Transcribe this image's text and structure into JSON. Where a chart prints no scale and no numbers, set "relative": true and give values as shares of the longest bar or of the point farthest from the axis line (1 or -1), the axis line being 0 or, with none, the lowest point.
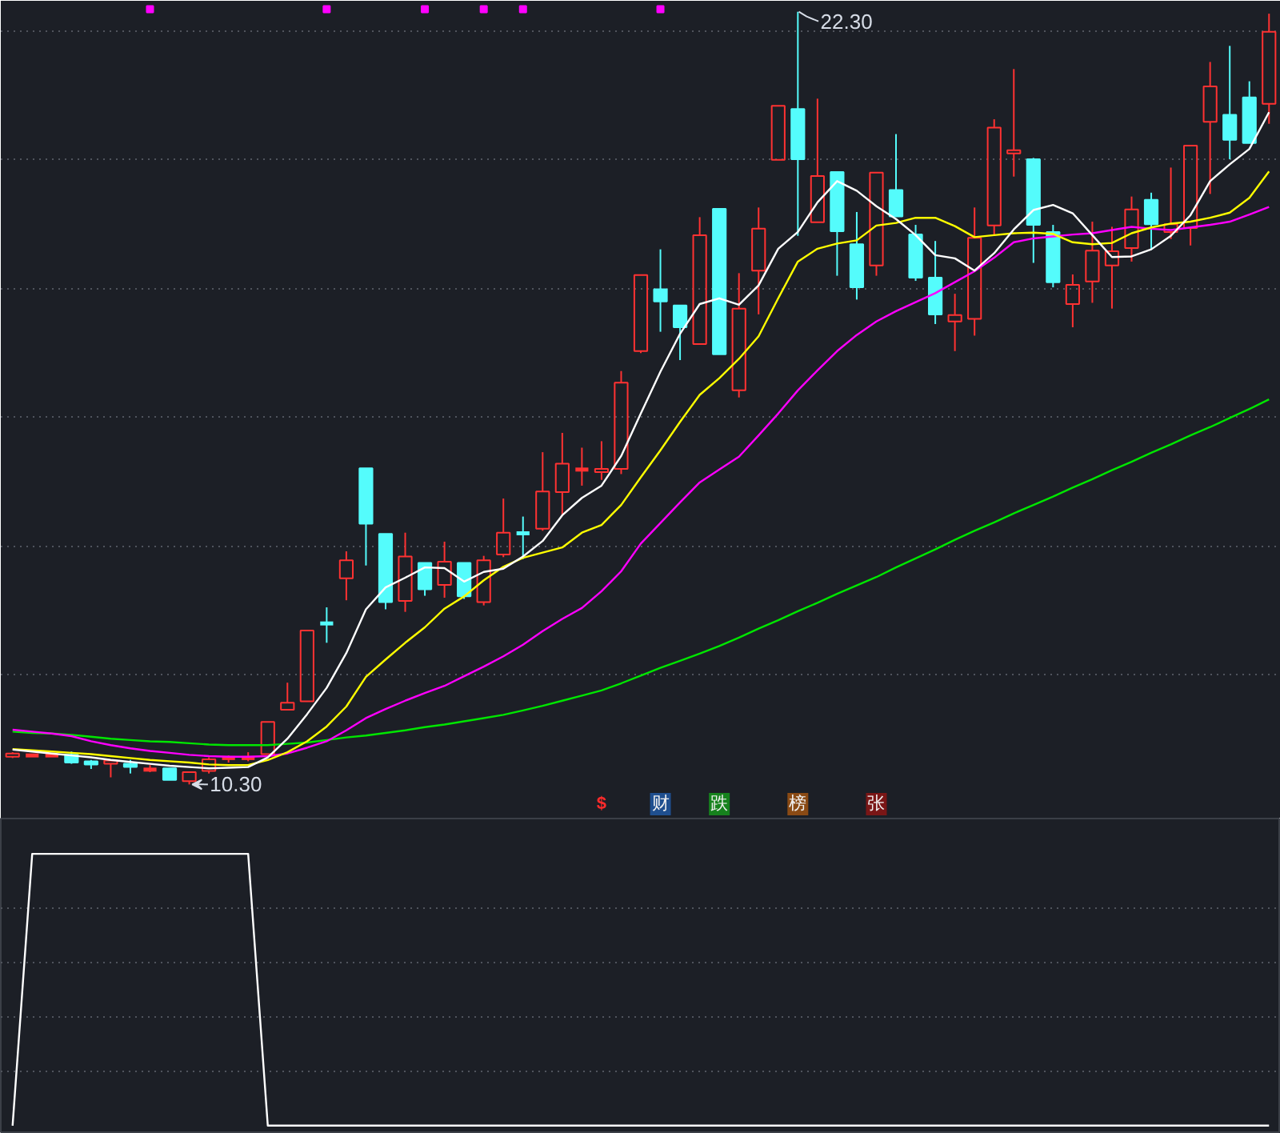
{
  "chart_data": [
    {
      "type": "candlestick",
      "categories": [
        null,
        null,
        null,
        null,
        null,
        null,
        null,
        null,
        null,
        null,
        null,
        null,
        null,
        null,
        null,
        null,
        null,
        null,
        null,
        null,
        null,
        null,
        null,
        null,
        null,
        null,
        null,
        null,
        null,
        null,
        null,
        null,
        null,
        null,
        null,
        null,
        null,
        null,
        null,
        null,
        null,
        null,
        null,
        null,
        null,
        null,
        null,
        null,
        null,
        null,
        null,
        null,
        null,
        null,
        null,
        null,
        null,
        null,
        null,
        null,
        null,
        null,
        null,
        null,
        null
      ],
      "ohlc": [
        [
          10.73,
          10.8,
          10.71,
          10.78
        ],
        [
          10.75,
          10.77,
          10.73,
          10.75
        ],
        [
          10.75,
          10.75,
          10.75,
          10.75
        ],
        [
          10.76,
          10.81,
          10.62,
          10.64
        ],
        [
          10.66,
          10.68,
          10.54,
          10.61
        ],
        [
          10.62,
          10.68,
          10.41,
          10.67
        ],
        [
          10.62,
          10.68,
          10.47,
          10.57
        ],
        [
          10.53,
          10.6,
          10.49,
          10.53
        ],
        [
          10.55,
          10.55,
          10.37,
          10.37
        ],
        [
          10.35,
          10.49,
          10.3,
          10.49
        ],
        [
          10.51,
          10.72,
          10.47,
          10.69
        ],
        [
          10.71,
          10.75,
          10.64,
          10.71
        ],
        [
          10.71,
          10.8,
          10.66,
          10.71
        ],
        [
          10.77,
          11.27,
          10.77,
          11.27
        ],
        [
          11.46,
          11.88,
          11.46,
          11.57
        ],
        [
          11.59,
          12.69,
          11.59,
          12.69
        ],
        [
          12.8,
          13.05,
          12.5,
          12.8
        ],
        [
          13.5,
          13.92,
          13.16,
          13.78
        ],
        [
          15.21,
          15.21,
          13.7,
          14.35
        ],
        [
          14.19,
          14.19,
          13.02,
          13.13
        ],
        [
          13.15,
          14.21,
          12.98,
          13.84
        ],
        [
          13.74,
          13.74,
          13.23,
          13.33
        ],
        [
          13.4,
          14.07,
          13.2,
          13.76
        ],
        [
          13.74,
          13.74,
          13.18,
          13.22
        ],
        [
          13.13,
          13.85,
          13.08,
          13.78
        ],
        [
          13.87,
          14.74,
          13.83,
          14.21
        ],
        [
          14.2,
          14.46,
          13.8,
          14.2
        ],
        [
          14.27,
          15.46,
          14.24,
          14.85
        ],
        [
          14.84,
          15.76,
          14.47,
          15.28
        ],
        [
          15.19,
          15.53,
          14.94,
          15.19
        ],
        [
          15.15,
          15.63,
          15.03,
          15.2
        ],
        [
          15.2,
          16.72,
          15.12,
          16.54
        ],
        [
          17.03,
          18.21,
          17.0,
          18.21
        ],
        [
          17.99,
          18.61,
          17.33,
          17.8
        ],
        [
          17.74,
          17.74,
          16.89,
          17.4
        ],
        [
          17.14,
          19.11,
          17.14,
          18.83
        ],
        [
          19.24,
          19.24,
          16.98,
          16.98
        ],
        [
          16.42,
          18.24,
          16.31,
          17.69
        ],
        [
          18.28,
          19.26,
          17.6,
          18.93
        ],
        [
          20.0,
          20.84,
          20.0,
          20.84
        ],
        [
          20.79,
          22.3,
          18.82,
          20.01
        ],
        [
          19.03,
          20.95,
          19.03,
          19.75
        ],
        [
          19.81,
          19.81,
          18.2,
          18.89
        ],
        [
          18.69,
          19.19,
          17.83,
          18.02
        ],
        [
          18.36,
          19.8,
          18.2,
          19.8
        ],
        [
          19.53,
          20.4,
          19.12,
          19.12
        ],
        [
          18.84,
          18.99,
          18.12,
          18.17
        ],
        [
          18.17,
          18.74,
          17.45,
          17.6
        ],
        [
          17.49,
          17.92,
          17.03,
          17.59
        ],
        [
          17.53,
          19.26,
          17.27,
          18.79
        ],
        [
          18.98,
          20.63,
          18.82,
          20.5
        ],
        [
          20.1,
          21.41,
          19.74,
          20.15
        ],
        [
          20.01,
          20.03,
          18.4,
          18.99
        ],
        [
          18.88,
          18.99,
          18.02,
          18.1
        ],
        [
          17.76,
          18.22,
          17.4,
          18.06
        ],
        [
          18.11,
          19.04,
          17.78,
          18.59
        ],
        [
          18.36,
          18.96,
          17.69,
          18.58
        ],
        [
          18.63,
          19.43,
          18.42,
          19.23
        ],
        [
          19.38,
          19.49,
          18.6,
          19.0
        ],
        [
          18.88,
          19.88,
          18.77,
          19.0
        ],
        [
          18.94,
          20.22,
          18.67,
          20.22
        ],
        [
          20.59,
          21.52,
          19.47,
          21.14
        ],
        [
          20.7,
          21.77,
          20.01,
          20.31
        ],
        [
          20.97,
          21.22,
          20.26,
          20.26
        ],
        [
          20.87,
          22.27,
          20.56,
          21.99
        ]
      ],
      "colors": [
        "#ff3232",
        "#ff3232",
        "#ff3232",
        "#54fcfc",
        "#54fcfc",
        "#ff3232",
        "#54fcfc",
        "#ff3232",
        "#54fcfc",
        "#ff3232",
        "#ff3232",
        "#ff3232",
        "#ff3232",
        "#ff3232",
        "#ff3232",
        "#ff3232",
        "#54fcfc",
        "#ff3232",
        "#54fcfc",
        "#54fcfc",
        "#ff3232",
        "#54fcfc",
        "#ff3232",
        "#54fcfc",
        "#ff3232",
        "#ff3232",
        "#54fcfc",
        "#ff3232",
        "#ff3232",
        "#ff3232",
        "#ff3232",
        "#ff3232",
        "#ff3232",
        "#54fcfc",
        "#54fcfc",
        "#ff3232",
        "#54fcfc",
        "#ff3232",
        "#ff3232",
        "#ff3232",
        "#54fcfc",
        "#ff3232",
        "#54fcfc",
        "#54fcfc",
        "#ff3232",
        "#54fcfc",
        "#54fcfc",
        "#54fcfc",
        "#ff3232",
        "#ff3232",
        "#ff3232",
        "#ff3232",
        "#54fcfc",
        "#54fcfc",
        "#ff3232",
        "#ff3232",
        "#ff3232",
        "#ff3232",
        "#54fcfc",
        "#ff3232",
        "#ff3232",
        "#ff3232",
        "#54fcfc",
        "#54fcfc",
        "#ff3232"
      ],
      "series": [
        {
          "type": "line",
          "color": "#00e600",
          "values": [
            11.12,
            11.1,
            11.09,
            11.07,
            11.04,
            11.01,
            10.99,
            10.97,
            10.96,
            10.94,
            10.92,
            10.91,
            10.91,
            10.91,
            10.93,
            10.95,
            10.99,
            11.03,
            11.06,
            11.1,
            11.14,
            11.19,
            11.23,
            11.28,
            11.33,
            11.38,
            11.45,
            11.52,
            11.6,
            11.68,
            11.76,
            11.87,
            11.99,
            12.11,
            12.22,
            12.33,
            12.45,
            12.58,
            12.72,
            12.85,
            12.99,
            13.12,
            13.26,
            13.39,
            13.52,
            13.67,
            13.81,
            13.95,
            14.1,
            14.24,
            14.37,
            14.51,
            14.64,
            14.77,
            14.91,
            15.04,
            15.18,
            15.31,
            15.45,
            15.58,
            15.72,
            15.85,
            15.99,
            16.13,
            16.28
          ]
        },
        {
          "type": "line",
          "color": "#ff00ff",
          "values": [
            11.15,
            11.12,
            11.09,
            11.05,
            10.97,
            10.91,
            10.86,
            10.82,
            10.79,
            10.76,
            10.74,
            10.73,
            10.73,
            10.74,
            10.78,
            10.87,
            10.97,
            11.14,
            11.33,
            11.47,
            11.6,
            11.72,
            11.83,
            11.98,
            12.13,
            12.29,
            12.47,
            12.68,
            12.87,
            13.04,
            13.3,
            13.61,
            14.04,
            14.36,
            14.68,
            14.99,
            15.19,
            15.39,
            15.72,
            16.06,
            16.42,
            16.73,
            17.03,
            17.28,
            17.49,
            17.65,
            17.79,
            17.93,
            18.1,
            18.27,
            18.48,
            18.72,
            18.78,
            18.81,
            18.84,
            18.86,
            18.91,
            18.96,
            18.93,
            18.91,
            18.95,
            18.99,
            19.04,
            19.15,
            19.27
          ]
        },
        {
          "type": "line",
          "color": "#ffff00",
          "values": [
            10.85,
            10.83,
            10.81,
            10.79,
            10.77,
            10.74,
            10.71,
            10.68,
            10.66,
            10.64,
            10.61,
            10.6,
            10.6,
            10.68,
            10.8,
            10.97,
            11.2,
            11.51,
            11.97,
            12.24,
            12.5,
            12.74,
            13.03,
            13.22,
            13.47,
            13.68,
            13.82,
            13.9,
            13.98,
            14.21,
            14.33,
            14.64,
            15.07,
            15.49,
            15.93,
            16.35,
            16.61,
            16.91,
            17.26,
            17.85,
            18.42,
            18.62,
            18.7,
            18.75,
            18.98,
            19.02,
            19.1,
            19.1,
            18.97,
            18.8,
            18.83,
            18.86,
            18.87,
            18.85,
            18.72,
            18.69,
            18.71,
            18.86,
            18.95,
            19.01,
            19.04,
            19.1,
            19.18,
            19.41,
            19.82
          ]
        },
        {
          "type": "line",
          "color": "#ffffff",
          "values": [
            10.84,
            10.81,
            10.78,
            10.75,
            10.72,
            10.68,
            10.65,
            10.62,
            10.59,
            10.57,
            10.55,
            10.56,
            10.57,
            10.72,
            11.01,
            11.39,
            11.8,
            12.34,
            13.02,
            13.36,
            13.51,
            13.67,
            13.66,
            13.45,
            13.6,
            13.65,
            13.84,
            14.08,
            14.48,
            14.75,
            14.94,
            15.4,
            16.06,
            16.71,
            17.3,
            17.76,
            17.85,
            17.75,
            18.05,
            18.62,
            18.88,
            19.34,
            19.67,
            19.52,
            19.28,
            19.08,
            18.83,
            18.52,
            18.47,
            18.28,
            18.55,
            18.92,
            19.22,
            19.3,
            19.17,
            18.83,
            18.49,
            18.5,
            18.61,
            18.82,
            19.14,
            19.67,
            19.93,
            20.17,
            20.74
          ]
        },
        {
          "type": "scatter",
          "color": "#ff00ff",
          "marker": "square",
          "values": [
            null,
            null,
            null,
            null,
            null,
            null,
            null,
            22.34,
            null,
            null,
            null,
            null,
            null,
            null,
            null,
            null,
            22.34,
            null,
            null,
            null,
            null,
            22.34,
            null,
            null,
            22.34,
            null,
            22.34,
            null,
            null,
            null,
            null,
            null,
            null,
            22.34,
            null,
            null,
            null,
            null,
            null,
            null,
            null,
            null,
            null,
            null,
            null,
            null,
            null,
            null,
            null,
            null,
            null,
            null,
            null,
            null,
            null,
            null,
            null,
            null,
            null,
            null,
            null,
            null,
            null,
            null,
            null
          ]
        }
      ],
      "ylim": [
        9.77,
        22.47
      ],
      "yticks": [
        {
          "value": 12,
          "label": null
        },
        {
          "value": 14,
          "label": null
        },
        {
          "value": 16,
          "label": null
        },
        {
          "value": 18,
          "label": null
        },
        {
          "value": 20,
          "label": null
        },
        {
          "value": 22,
          "label": null
        }
      ],
      "grid": "y",
      "tick_labels": false,
      "annotations": [
        "22.30",
        "10.30",
        "$",
        "财",
        "跌",
        "榜",
        "张"
      ]
    },
    {
      "type": "line",
      "categories": [
        null,
        null,
        null,
        null,
        null,
        null,
        null,
        null,
        null,
        null,
        null,
        null,
        null,
        null,
        null,
        null,
        null,
        null,
        null,
        null,
        null,
        null,
        null,
        null,
        null,
        null,
        null,
        null,
        null,
        null,
        null,
        null,
        null,
        null,
        null,
        null,
        null,
        null,
        null,
        null,
        null,
        null,
        null,
        null,
        null,
        null,
        null,
        null,
        null,
        null,
        null,
        null,
        null,
        null,
        null,
        null,
        null,
        null,
        null,
        null,
        null,
        null,
        null,
        null,
        null
      ],
      "values": [
        0,
        1,
        1,
        1,
        1,
        1,
        1,
        1,
        1,
        1,
        1,
        1,
        1,
        0,
        0,
        0,
        0,
        0,
        0,
        0,
        0,
        0,
        0,
        0,
        0,
        0,
        0,
        0,
        0,
        0,
        0,
        0,
        0,
        0,
        0,
        0,
        0,
        0,
        0,
        0,
        0,
        0,
        0,
        0,
        0,
        0,
        0,
        0,
        0,
        0,
        0,
        0,
        0,
        0,
        0,
        0,
        0,
        0,
        0,
        0,
        0,
        0,
        0,
        0,
        0
      ],
      "color": "#ffffff",
      "relative": true,
      "grid": "y",
      "tick_labels": false
    }
  ]
}
